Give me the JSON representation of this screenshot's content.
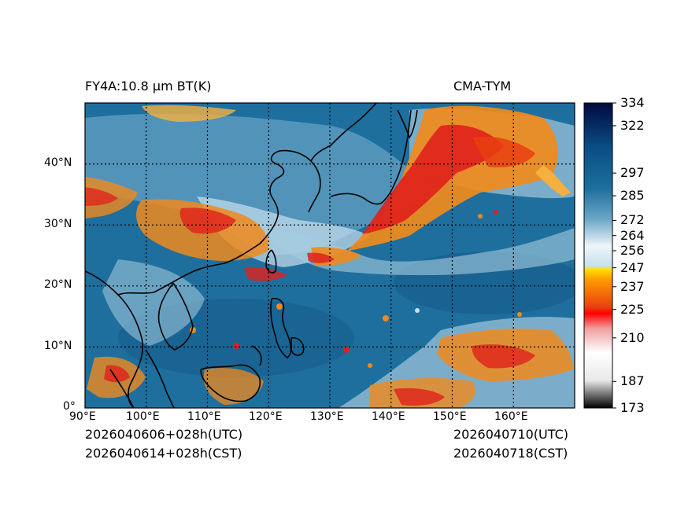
{
  "header": {
    "left_title": "FY4A:10.8 µm BT(K)",
    "right_title": "CMA-TYM"
  },
  "footer": {
    "init_utc": "2026040606+028h(UTC)",
    "init_cst": "2026040614+028h(CST)",
    "valid_utc": "2026040710(UTC)",
    "valid_cst": "2026040718(CST)"
  },
  "map": {
    "lon_range": [
      90,
      170
    ],
    "lat_range": [
      0,
      50
    ],
    "lon_ticks": [
      "90°E",
      "100°E",
      "110°E",
      "120°E",
      "130°E",
      "140°E",
      "150°E",
      "160°E"
    ],
    "lat_ticks": [
      "0°",
      "10°N",
      "20°N",
      "30°N",
      "40°N"
    ],
    "colors": {
      "ocean": "#1f6f9e",
      "ocean_dark": "#0f3f6a",
      "cloud_light": "#c7e0ee",
      "cloud_orange": "#f08a1c",
      "cloud_red": "#e0201c",
      "coast": "#000000"
    }
  },
  "colorbar": {
    "min": 173,
    "max": 334,
    "ticks": [
      "334",
      "322",
      "297",
      "285",
      "272",
      "264",
      "256",
      "247",
      "237",
      "225",
      "210",
      "187",
      "173"
    ],
    "tick_values": [
      334,
      322,
      297,
      285,
      272,
      264,
      256,
      247,
      237,
      225,
      210,
      187,
      173
    ]
  }
}
